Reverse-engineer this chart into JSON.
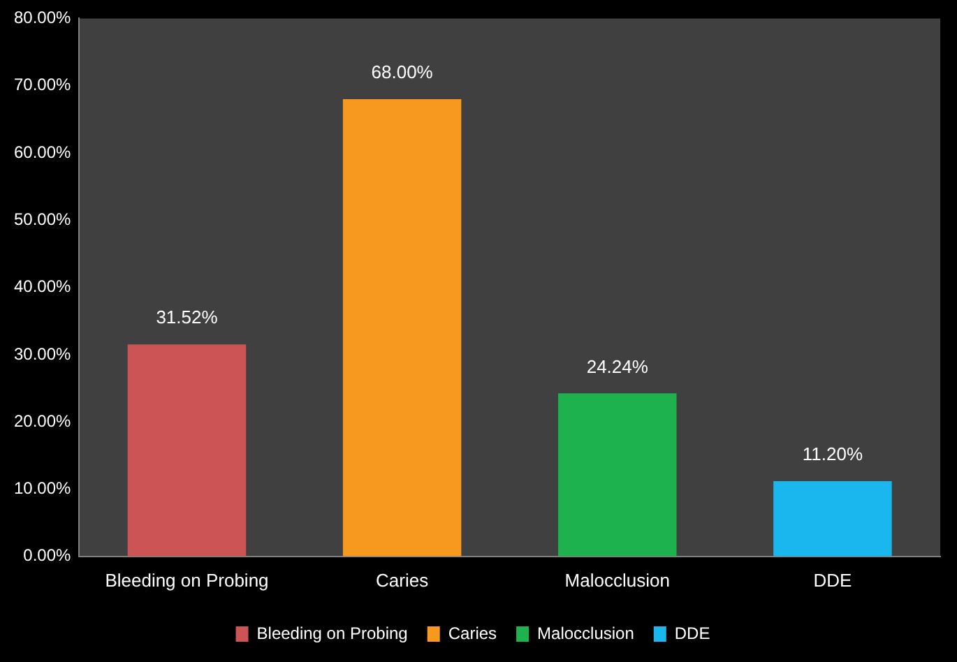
{
  "chart_data": {
    "type": "bar",
    "categories": [
      "Bleeding on Probing",
      "Caries",
      "Malocclusion",
      "DDE"
    ],
    "series": [
      {
        "name": "Bleeding on Probing",
        "color": "#cd5454",
        "values": [
          31.52,
          null,
          null,
          null
        ],
        "value_labels": [
          "31.52%",
          null,
          null,
          null
        ]
      },
      {
        "name": "Caries",
        "color": "#f7981f",
        "values": [
          null,
          68.0,
          null,
          null
        ],
        "value_labels": [
          null,
          "68.00%",
          null,
          null
        ]
      },
      {
        "name": "Malocclusion",
        "color": "#1db24e",
        "values": [
          null,
          null,
          24.24,
          null
        ],
        "value_labels": [
          null,
          null,
          "24.24%",
          null
        ]
      },
      {
        "name": "DDE",
        "color": "#1ab7ef",
        "values": [
          null,
          null,
          null,
          11.2
        ],
        "value_labels": [
          null,
          null,
          null,
          "11.20%"
        ]
      }
    ],
    "ylim": [
      0,
      80
    ],
    "yticks": [
      {
        "value": 0,
        "label": "0.00%"
      },
      {
        "value": 10,
        "label": "10.00%"
      },
      {
        "value": 20,
        "label": "20.00%"
      },
      {
        "value": 30,
        "label": "30.00%"
      },
      {
        "value": 40,
        "label": "40.00%"
      },
      {
        "value": 50,
        "label": "50.00%"
      },
      {
        "value": 60,
        "label": "60.00%"
      },
      {
        "value": 70,
        "label": "70.00%"
      },
      {
        "value": 80,
        "label": "80.00%"
      }
    ],
    "legend": "bottom"
  }
}
